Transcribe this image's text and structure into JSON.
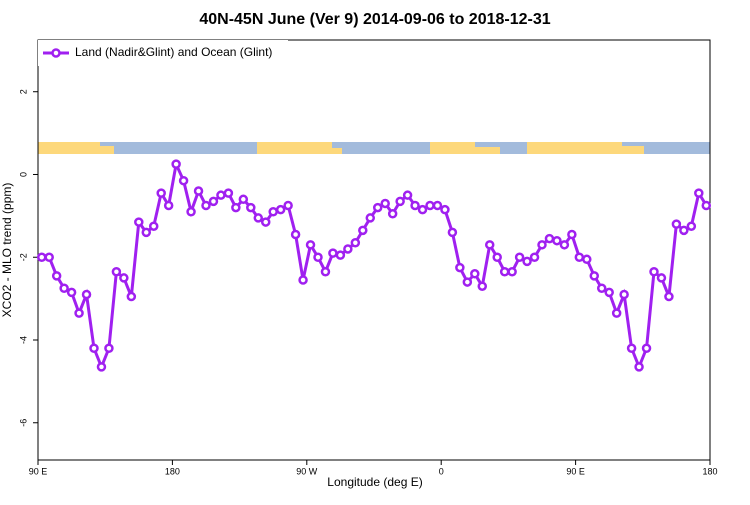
{
  "chart_data": {
    "type": "line",
    "title": "40N-45N June (Ver 9)   2014-09-06 to 2018-12-31",
    "x_label": "Longitude (deg E)",
    "y_label": "XCO2 - MLO trend (ppm)",
    "xlim": [
      90,
      540
    ],
    "xticks": [
      {
        "value": 90,
        "label": "90 E"
      },
      {
        "value": 180,
        "label": "180"
      },
      {
        "value": 270,
        "label": "90 W"
      },
      {
        "value": 360,
        "label": "0"
      },
      {
        "value": 450,
        "label": "90 E"
      },
      {
        "value": 540,
        "label": "180"
      }
    ],
    "ylim": [
      -6.9,
      3.25
    ],
    "yticks": [
      -6,
      -4,
      -2,
      0,
      2
    ],
    "legend": "top-left",
    "x": [
      92.5,
      97.5,
      102.5,
      107.5,
      112.5,
      117.5,
      122.5,
      127.5,
      132.5,
      137.5,
      142.5,
      147.5,
      152.5,
      157.5,
      162.5,
      167.5,
      172.5,
      177.5,
      182.5,
      187.5,
      192.5,
      197.5,
      202.5,
      207.5,
      212.5,
      217.5,
      222.5,
      227.5,
      232.5,
      237.5,
      242.5,
      247.5,
      252.5,
      257.5,
      262.5,
      267.5,
      272.5,
      277.5,
      282.5,
      287.5,
      292.5,
      297.5,
      302.5,
      307.5,
      312.5,
      317.5,
      322.5,
      327.5,
      332.5,
      337.5,
      342.5,
      347.5,
      352.5,
      357.5,
      362.5,
      367.5,
      372.5,
      377.5,
      382.5,
      387.5,
      392.5,
      397.5,
      402.5,
      407.5,
      412.5,
      417.5,
      422.5,
      427.5,
      432.5,
      437.5,
      442.5,
      447.5,
      452.5,
      457.5,
      462.5,
      467.5,
      472.5,
      477.5,
      482.5,
      487.5,
      492.5,
      497.5,
      502.5,
      507.5,
      512.5,
      517.5,
      522.5,
      527.5,
      532.5,
      537.5
    ],
    "series": [
      {
        "name": "Land (Nadir&Glint) and Ocean (Glint)",
        "color": "#a020f0",
        "values": [
          -2.0,
          -2.0,
          -2.45,
          -2.75,
          -2.85,
          -3.35,
          -2.9,
          -4.2,
          -4.65,
          -4.2,
          -2.35,
          -2.5,
          -2.95,
          -1.15,
          -1.4,
          -1.25,
          -0.45,
          -0.75,
          0.25,
          -0.15,
          -0.9,
          -0.4,
          -0.75,
          -0.65,
          -0.5,
          -0.45,
          -0.8,
          -0.6,
          -0.8,
          -1.05,
          -1.15,
          -0.9,
          -0.85,
          -0.75,
          -1.45,
          -2.55,
          -1.7,
          -2.0,
          -2.35,
          -1.9,
          -1.95,
          -1.8,
          -1.65,
          -1.35,
          -1.05,
          -0.8,
          -0.7,
          -0.95,
          -0.65,
          -0.5,
          -0.75,
          -0.85,
          -0.75,
          -0.75,
          -0.85,
          -1.4,
          -2.25,
          -2.6,
          -2.4,
          -2.7,
          -1.7,
          -2.0,
          -2.35,
          -2.35,
          -2.0,
          -2.1,
          -2.0,
          -1.7,
          -1.55,
          -1.6,
          -1.7,
          -1.45,
          -2.0,
          -2.05,
          -2.45,
          -2.75,
          -2.85,
          -3.35,
          -2.9,
          -4.2,
          -4.65,
          -4.2,
          -2.35,
          -2.5,
          -2.95,
          -1.2,
          -1.35,
          -1.25,
          -0.45,
          -0.75
        ]
      }
    ]
  }
}
